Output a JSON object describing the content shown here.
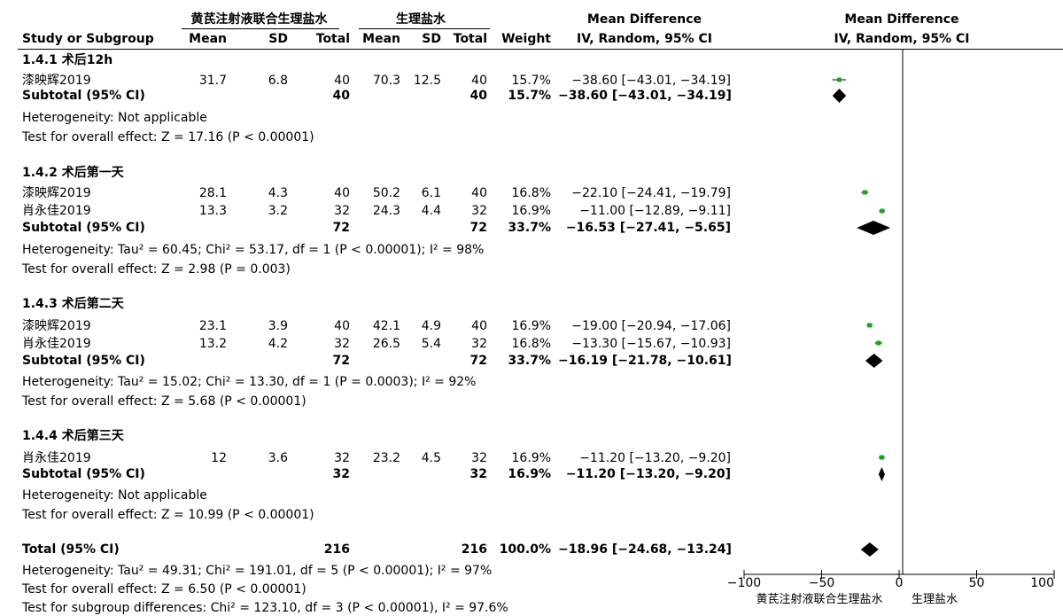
{
  "header": {
    "group1": "黄芪注射液联合生理盐水",
    "group2": "生理盐水",
    "study_col": "Study or Subgroup",
    "mean": "Mean",
    "sd": "SD",
    "total": "Total",
    "weight": "Weight",
    "md_title": "Mean Difference",
    "md_method": "IV, Random, 95% CI",
    "plot_title": "Mean Difference",
    "plot_method": "IV, Random, 95% CI"
  },
  "subgroups": [
    {
      "title": "1.4.1 术后12h",
      "studies": [
        {
          "name": "漆映辉2019",
          "m1": "31.7",
          "sd1": "6.8",
          "n1": "40",
          "m2": "70.3",
          "sd2": "12.5",
          "n2": "40",
          "weight": "15.7%",
          "ci": "−38.60 [−43.01, −34.19]"
        }
      ],
      "subtotal": {
        "label": "Subtotal (95% CI)",
        "n1": "40",
        "n2": "40",
        "weight": "15.7%",
        "ci": "−38.60 [−43.01, −34.19]"
      },
      "heterogeneity": "Heterogeneity: Not applicable",
      "overall": "Test for overall effect: Z = 17.16 (P < 0.00001)"
    },
    {
      "title": "1.4.2 术后第一天",
      "studies": [
        {
          "name": "漆映辉2019",
          "m1": "28.1",
          "sd1": "4.3",
          "n1": "40",
          "m2": "50.2",
          "sd2": "6.1",
          "n2": "40",
          "weight": "16.8%",
          "ci": "−22.10 [−24.41, −19.79]"
        },
        {
          "name": "肖永佳2019",
          "m1": "13.3",
          "sd1": "3.2",
          "n1": "32",
          "m2": "24.3",
          "sd2": "4.4",
          "n2": "32",
          "weight": "16.9%",
          "ci": "−11.00 [−12.89, −9.11]"
        }
      ],
      "subtotal": {
        "label": "Subtotal (95% CI)",
        "n1": "72",
        "n2": "72",
        "weight": "33.7%",
        "ci": "−16.53 [−27.41, −5.65]"
      },
      "heterogeneity": "Heterogeneity: Tau² = 60.45; Chi² = 53.17, df = 1 (P < 0.00001); I² = 98%",
      "overall": "Test for overall effect: Z = 2.98 (P = 0.003)"
    },
    {
      "title": "1.4.3 术后第二天",
      "studies": [
        {
          "name": "漆映辉2019",
          "m1": "23.1",
          "sd1": "3.9",
          "n1": "40",
          "m2": "42.1",
          "sd2": "4.9",
          "n2": "40",
          "weight": "16.9%",
          "ci": "−19.00 [−20.94, −17.06]"
        },
        {
          "name": "肖永佳2019",
          "m1": "13.2",
          "sd1": "4.2",
          "n1": "32",
          "m2": "26.5",
          "sd2": "5.4",
          "n2": "32",
          "weight": "16.8%",
          "ci": "−13.30 [−15.67, −10.93]"
        }
      ],
      "subtotal": {
        "label": "Subtotal (95% CI)",
        "n1": "72",
        "n2": "72",
        "weight": "33.7%",
        "ci": "−16.19 [−21.78, −10.61]"
      },
      "heterogeneity": "Heterogeneity: Tau² = 15.02; Chi² = 13.30, df = 1 (P = 0.0003); I² = 92%",
      "overall": "Test for overall effect: Z = 5.68 (P < 0.00001)"
    },
    {
      "title": "1.4.4 术后第三天",
      "studies": [
        {
          "name": "肖永佳2019",
          "m1": "12",
          "sd1": "3.6",
          "n1": "32",
          "m2": "23.2",
          "sd2": "4.5",
          "n2": "32",
          "weight": "16.9%",
          "ci": "−11.20 [−13.20, −9.20]"
        }
      ],
      "subtotal": {
        "label": "Subtotal (95% CI)",
        "n1": "32",
        "n2": "32",
        "weight": "16.9%",
        "ci": "−11.20 [−13.20, −9.20]"
      },
      "heterogeneity": "Heterogeneity: Not applicable",
      "overall": "Test for overall effect: Z = 10.99 (P < 0.00001)"
    }
  ],
  "total": {
    "label": "Total (95% CI)",
    "n1": "216",
    "n2": "216",
    "weight": "100.0%",
    "ci": "−18.96 [−24.68, −13.24]",
    "heterogeneity": "Heterogeneity: Tau² = 49.31; Chi² = 191.01, df = 5 (P < 0.00001); I² = 97%",
    "overall": "Test for overall effect: Z = 6.50 (P < 0.00001)",
    "subgroup_diff": "Test for subgroup differences: Chi² = 123.10, df = 3 (P < 0.00001), I² = 97.6%"
  },
  "axis_labels": {
    "left": "黄芪注射液联合生理盐水",
    "right": "生理盐水"
  },
  "chart_data": {
    "type": "forest",
    "xlim": [
      -100,
      100
    ],
    "xticks": [
      -100,
      -50,
      0,
      50,
      100
    ],
    "colors": {
      "study": "#1aa51a",
      "summary": "#000000"
    },
    "studies": [
      {
        "group": "1.4.1 术后12h",
        "name": "漆映辉2019",
        "md": -38.6,
        "lo": -43.01,
        "hi": -34.19,
        "weight": 15.7
      },
      {
        "group": "1.4.2 术后第一天",
        "name": "漆映辉2019",
        "md": -22.1,
        "lo": -24.41,
        "hi": -19.79,
        "weight": 16.8
      },
      {
        "group": "1.4.2 术后第一天",
        "name": "肖永佳2019",
        "md": -11.0,
        "lo": -12.89,
        "hi": -9.11,
        "weight": 16.9
      },
      {
        "group": "1.4.3 术后第二天",
        "name": "漆映辉2019",
        "md": -19.0,
        "lo": -20.94,
        "hi": -17.06,
        "weight": 16.9
      },
      {
        "group": "1.4.3 术后第二天",
        "name": "肖永佳2019",
        "md": -13.3,
        "lo": -15.67,
        "hi": -10.93,
        "weight": 16.8
      },
      {
        "group": "1.4.4 术后第三天",
        "name": "肖永佳2019",
        "md": -11.2,
        "lo": -13.2,
        "hi": -9.2,
        "weight": 16.9
      }
    ],
    "summaries": [
      {
        "label": "Subtotal 1.4.1",
        "md": -38.6,
        "lo": -43.01,
        "hi": -34.19
      },
      {
        "label": "Subtotal 1.4.2",
        "md": -16.53,
        "lo": -27.41,
        "hi": -5.65
      },
      {
        "label": "Subtotal 1.4.3",
        "md": -16.19,
        "lo": -21.78,
        "hi": -10.61
      },
      {
        "label": "Subtotal 1.4.4",
        "md": -11.2,
        "lo": -13.2,
        "hi": -9.2
      },
      {
        "label": "Total",
        "md": -18.96,
        "lo": -24.68,
        "hi": -13.24
      }
    ]
  }
}
